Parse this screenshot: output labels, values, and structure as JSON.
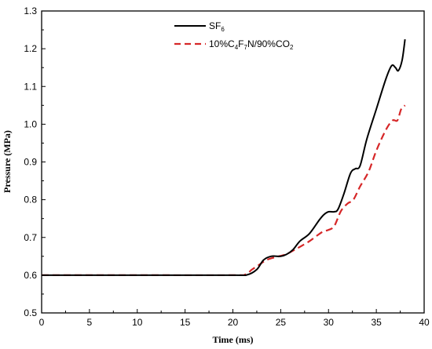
{
  "chart_data": {
    "type": "line",
    "xlabel": "Time (ms)",
    "ylabel": "Pressure (MPa)",
    "xlim": [
      0,
      40
    ],
    "ylim": [
      0.5,
      1.3
    ],
    "xticks": [
      "0",
      "5",
      "10",
      "15",
      "20",
      "25",
      "30",
      "35",
      "40"
    ],
    "yticks": [
      "0.5",
      "0.6",
      "0.7",
      "0.8",
      "0.9",
      "1.0",
      "1.1",
      "1.2",
      "1.3"
    ],
    "grid": false,
    "legend_position": "top-center",
    "series": [
      {
        "name": "SF6",
        "color": "#000000",
        "dash": "solid",
        "x": [
          0,
          10,
          20,
          21.5,
          22.5,
          23.2,
          24,
          25,
          25.6,
          26.3,
          27,
          28,
          29,
          29.5,
          30,
          30.6,
          31,
          31.6,
          32.3,
          32.8,
          33.3,
          34,
          35,
          36,
          36.6,
          37,
          37.3,
          37.7,
          38
        ],
        "y": [
          0.6,
          0.6,
          0.6,
          0.601,
          0.615,
          0.64,
          0.65,
          0.65,
          0.655,
          0.668,
          0.69,
          0.71,
          0.745,
          0.76,
          0.768,
          0.768,
          0.775,
          0.815,
          0.87,
          0.882,
          0.89,
          0.96,
          1.04,
          1.12,
          1.155,
          1.15,
          1.142,
          1.17,
          1.225
        ]
      },
      {
        "name": "10%C4F7N/90%CO2",
        "color": "#d62728",
        "dash": "dashed",
        "x": [
          0,
          10,
          20,
          21.3,
          22,
          22.6,
          23.5,
          24.5,
          25.5,
          26.3,
          27,
          28,
          28.8,
          29.4,
          30,
          30.6,
          31.3,
          32,
          32.6,
          33.3,
          34.2,
          35,
          36,
          36.7,
          37.2,
          37.6,
          38
        ],
        "y": [
          0.6,
          0.6,
          0.6,
          0.602,
          0.615,
          0.625,
          0.64,
          0.648,
          0.655,
          0.665,
          0.675,
          0.69,
          0.705,
          0.715,
          0.72,
          0.73,
          0.77,
          0.79,
          0.8,
          0.835,
          0.875,
          0.93,
          0.985,
          1.01,
          1.01,
          1.04,
          1.05
        ]
      }
    ],
    "legend": {
      "sf6_main": "SF",
      "sf6_sub": "6",
      "mix_parts": [
        {
          "t": "10%C",
          "sub": false
        },
        {
          "t": "4",
          "sub": true
        },
        {
          "t": "F",
          "sub": false
        },
        {
          "t": "7",
          "sub": true
        },
        {
          "t": "N/90%CO",
          "sub": false
        },
        {
          "t": "2",
          "sub": true
        }
      ]
    }
  }
}
